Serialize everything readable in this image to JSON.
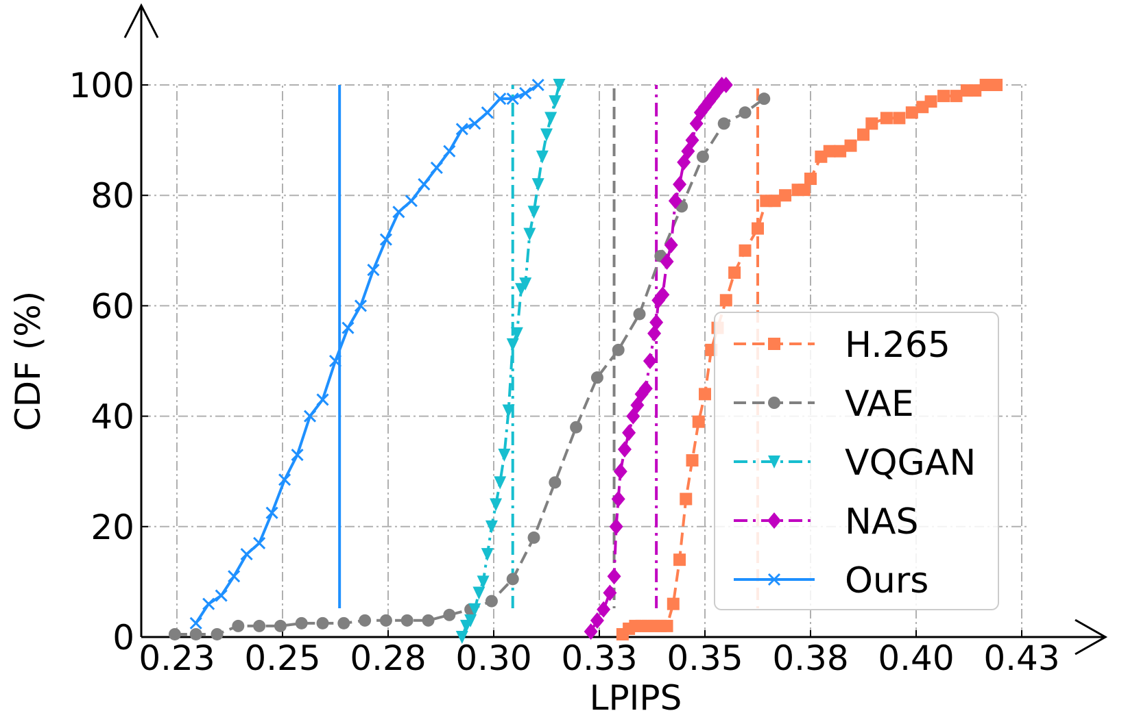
{
  "chart_data": {
    "type": "line",
    "title": "",
    "xlabel": "LPIPS",
    "ylabel": "CDF (%)",
    "xlim": [
      0.23,
      0.43
    ],
    "ylim": [
      0,
      100
    ],
    "xticks": [
      0.225,
      0.25,
      0.275,
      0.3,
      0.325,
      0.35,
      0.375,
      0.4,
      0.425
    ],
    "xtick_labels": [
      "0.23",
      "0.25",
      "0.28",
      "0.30",
      "0.33",
      "0.35",
      "0.38",
      "0.40",
      "0.43"
    ],
    "yticks": [
      0,
      20,
      40,
      60,
      80,
      100
    ],
    "ytick_labels": [
      "0",
      "20",
      "40",
      "60",
      "80",
      "100"
    ],
    "grid": true,
    "legend_position": "lower-right",
    "series": [
      {
        "name": "H.265",
        "color": "#FF7F50",
        "marker": "square",
        "linestyle": "dashed",
        "mean": 0.3625,
        "x": [
          0.3305,
          0.332,
          0.3335,
          0.335,
          0.3365,
          0.338,
          0.3395,
          0.341,
          0.3425,
          0.344,
          0.3455,
          0.347,
          0.3485,
          0.35,
          0.3515,
          0.353,
          0.355,
          0.357,
          0.3595,
          0.3625,
          0.3645,
          0.3665,
          0.369,
          0.372,
          0.3735,
          0.375,
          0.3775,
          0.3795,
          0.382,
          0.3845,
          0.3875,
          0.3895,
          0.393,
          0.396,
          0.399,
          0.4015,
          0.4035,
          0.4065,
          0.4095,
          0.412,
          0.414,
          0.4165,
          0.419
        ],
        "y": [
          0.5,
          1.5,
          2,
          2,
          2,
          2,
          2,
          2,
          6,
          14,
          25,
          32,
          39,
          44,
          52,
          56,
          61,
          66,
          70,
          74,
          79,
          79,
          80,
          81,
          81,
          83,
          87,
          88,
          88,
          89,
          91,
          93,
          94,
          94,
          95,
          96,
          97,
          98,
          98,
          99,
          99,
          100,
          100
        ]
      },
      {
        "name": "VAE",
        "color": "#808080",
        "marker": "circle",
        "linestyle": "dashed",
        "mean": 0.3285,
        "x": [
          0.2245,
          0.2295,
          0.2345,
          0.2395,
          0.2445,
          0.2495,
          0.2545,
          0.2595,
          0.2645,
          0.2695,
          0.2745,
          0.2795,
          0.2845,
          0.2895,
          0.2945,
          0.2995,
          0.3045,
          0.3095,
          0.3145,
          0.3195,
          0.3245,
          0.3295,
          0.3345,
          0.3395,
          0.3445,
          0.3495,
          0.3545,
          0.3595,
          0.364
        ],
        "y": [
          0.5,
          0.5,
          0.5,
          2,
          2,
          2,
          2.5,
          2.5,
          2.5,
          3,
          3,
          3,
          3,
          4,
          5,
          6.5,
          10.5,
          18,
          28,
          38,
          47,
          52,
          58.5,
          69,
          78,
          87,
          93,
          95,
          97.5
        ]
      },
      {
        "name": "VQGAN",
        "color": "#17BECF",
        "marker": "triangle-down",
        "linestyle": "dashdot",
        "mean": 0.3045,
        "x": [
          0.2925,
          0.2935,
          0.2945,
          0.2955,
          0.2965,
          0.2975,
          0.2985,
          0.2995,
          0.3005,
          0.3015,
          0.3025,
          0.3035,
          0.3045,
          0.3055,
          0.3065,
          0.3075,
          0.3085,
          0.3095,
          0.3105,
          0.3115,
          0.3125,
          0.3135,
          0.3145,
          0.3155
        ],
        "y": [
          0,
          2,
          3,
          5,
          8,
          10,
          15,
          20,
          24,
          28,
          33,
          41,
          53,
          55,
          63,
          64,
          73,
          77,
          82,
          87,
          91,
          94,
          97,
          100
        ]
      },
      {
        "name": "NAS",
        "color": "#C000C0",
        "marker": "diamond",
        "linestyle": "dashdot",
        "mean": 0.3385,
        "x": [
          0.323,
          0.3245,
          0.326,
          0.3275,
          0.3285,
          0.329,
          0.3295,
          0.33,
          0.331,
          0.332,
          0.333,
          0.334,
          0.335,
          0.336,
          0.337,
          0.338,
          0.3385,
          0.339,
          0.34,
          0.341,
          0.342,
          0.343,
          0.344,
          0.345,
          0.346,
          0.347,
          0.348,
          0.349,
          0.35,
          0.351,
          0.352,
          0.353,
          0.354,
          0.355
        ],
        "y": [
          1,
          3,
          5,
          8,
          11,
          20,
          25,
          30,
          34,
          37,
          40,
          42,
          44,
          45,
          50,
          55,
          57,
          61,
          62,
          68,
          71,
          79,
          82,
          86,
          88,
          90,
          93,
          95,
          96,
          97,
          98,
          99,
          100,
          100
        ]
      },
      {
        "name": "Ours",
        "color": "#1E90FF",
        "marker": "x",
        "linestyle": "solid",
        "mean": 0.2635,
        "x": [
          0.2295,
          0.2325,
          0.2355,
          0.2385,
          0.2415,
          0.2445,
          0.2475,
          0.2505,
          0.2535,
          0.2565,
          0.2595,
          0.2625,
          0.2655,
          0.2685,
          0.2715,
          0.2745,
          0.2775,
          0.2805,
          0.2835,
          0.2865,
          0.2895,
          0.2925,
          0.2955,
          0.2985,
          0.3015,
          0.3045,
          0.3075,
          0.3105
        ],
        "y": [
          2.5,
          6,
          7.5,
          11,
          15,
          17,
          22.5,
          28.5,
          33,
          40,
          43,
          50,
          56,
          60,
          66.5,
          72,
          77,
          79,
          82,
          85,
          88,
          92,
          93,
          95,
          97.5,
          97.5,
          98.5,
          100
        ]
      }
    ]
  }
}
